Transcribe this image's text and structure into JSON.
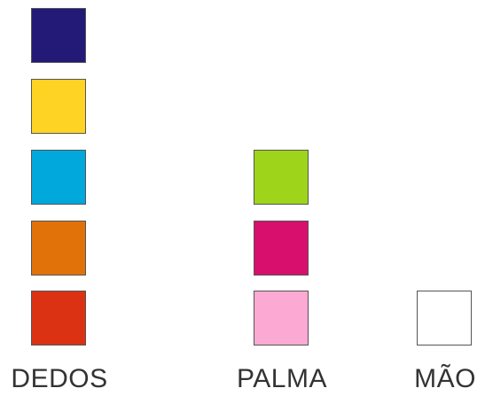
{
  "columns": [
    {
      "id": "dedos",
      "label": "DEDOS",
      "swatches": [
        {
          "row": 1,
          "color": "#231a78"
        },
        {
          "row": 2,
          "color": "#ffd324"
        },
        {
          "row": 3,
          "color": "#00a8db"
        },
        {
          "row": 4,
          "color": "#e07209"
        },
        {
          "row": 5,
          "color": "#db3214"
        }
      ]
    },
    {
      "id": "palma",
      "label": "PALMA",
      "swatches": [
        {
          "row": 3,
          "color": "#9ed41a"
        },
        {
          "row": 4,
          "color": "#d90f6e"
        },
        {
          "row": 5,
          "color": "#fcaad3"
        }
      ]
    },
    {
      "id": "mao",
      "label": "MÃO",
      "swatches": [
        {
          "row": 5,
          "color": "#ffffff"
        }
      ]
    }
  ]
}
